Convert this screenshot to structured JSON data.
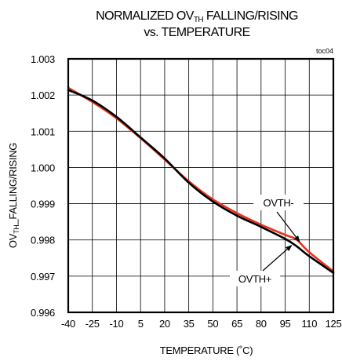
{
  "chart_data": {
    "type": "line",
    "title_line1_pre": "NORMALIZED OV",
    "title_line1_sub": "TH",
    "title_line1_post": " FALLING/RISING",
    "title_line2": "vs. TEMPERATURE",
    "note": "toc04",
    "xlabel": "TEMPERATURE (˚C)",
    "ylabel_pre": "OV",
    "ylabel_sub": "TH",
    "ylabel_post": "_FALLING/RISING",
    "xlim": [
      -40,
      125
    ],
    "ylim": [
      0.996,
      1.003
    ],
    "x_ticks": [
      "-40",
      "-25",
      "-10",
      "5",
      "20",
      "35",
      "50",
      "65",
      "80",
      "95",
      "110",
      "125"
    ],
    "y_ticks": [
      "0.996",
      "0.997",
      "0.998",
      "0.999",
      "1.000",
      "1.001",
      "1.002",
      "1.003"
    ],
    "grid": true,
    "series": [
      {
        "name": "OVTH-",
        "color": "#e8321e",
        "x": [
          -40,
          -25,
          -10,
          5,
          20,
          35,
          50,
          65,
          80,
          95,
          102,
          110,
          125
        ],
        "y": [
          1.0022,
          1.00181,
          1.00136,
          1.00081,
          1.00022,
          0.99962,
          0.99912,
          0.99874,
          0.99842,
          0.99814,
          0.99801,
          0.99766,
          0.99713
        ]
      },
      {
        "name": "OVTH+",
        "color": "#000000",
        "x": [
          -40,
          -25,
          -10,
          5,
          20,
          35,
          50,
          65,
          80,
          95,
          102,
          110,
          125
        ],
        "y": [
          1.00214,
          1.00185,
          1.0014,
          1.00083,
          1.00025,
          0.99958,
          0.99906,
          0.99867,
          0.99836,
          0.99803,
          0.99783,
          0.99755,
          0.99709
        ]
      }
    ],
    "annotations": [
      {
        "text": "OVTH-",
        "series": "OVTH-",
        "x": 104,
        "y": 0.99795
      },
      {
        "text": "OVTH+",
        "series": "OVTH+",
        "x": 99,
        "y": 0.99785
      }
    ]
  }
}
